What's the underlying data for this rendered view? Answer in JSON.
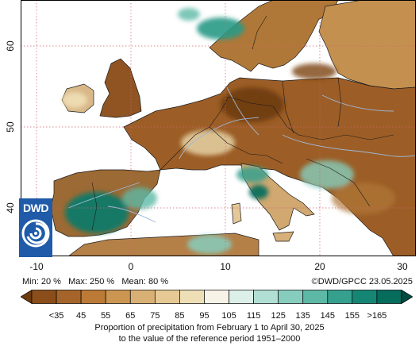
{
  "map": {
    "lat_ticks": [
      "60",
      "50",
      "40"
    ],
    "lon_ticks": [
      "-10",
      "0",
      "10",
      "20",
      "30"
    ],
    "colors": {
      "land_dry": "#8a4a1a",
      "land_mid": "#c08a4c",
      "land_normal": "#e6d2a6",
      "land_wet": "#2a9a86",
      "sea": "#ffffff",
      "grid": "#d06070",
      "border": "#1a1a1a",
      "rivers": "#9fb8d6"
    },
    "logo_text": "DWD"
  },
  "stats": {
    "min_label": "Min: 20 %",
    "max_label": "Max: 250 %",
    "mean_label": "Mean: 80 %",
    "copyright": "©DWD/GPCC 23.05.2025"
  },
  "colorbar": {
    "colors": [
      "#6b3a0f",
      "#8b4e1a",
      "#a5652a",
      "#bb7a36",
      "#cb9552",
      "#d9b073",
      "#e6c994",
      "#efdfb6",
      "#f7f3e6",
      "#dcefe9",
      "#b1dfd3",
      "#86cdbd",
      "#5db9a6",
      "#35a08e",
      "#168674",
      "#066c5c",
      "#024b40"
    ],
    "labels": [
      "<35",
      "45",
      "55",
      "65",
      "75",
      "85",
      "95",
      "105",
      "115",
      "125",
      "135",
      "145",
      "155",
      ">165"
    ]
  },
  "caption": {
    "line1": "Proportion of precipitation from February 1 to April 30, 2025",
    "line2": "to the value of the reference period 1951–2000"
  }
}
